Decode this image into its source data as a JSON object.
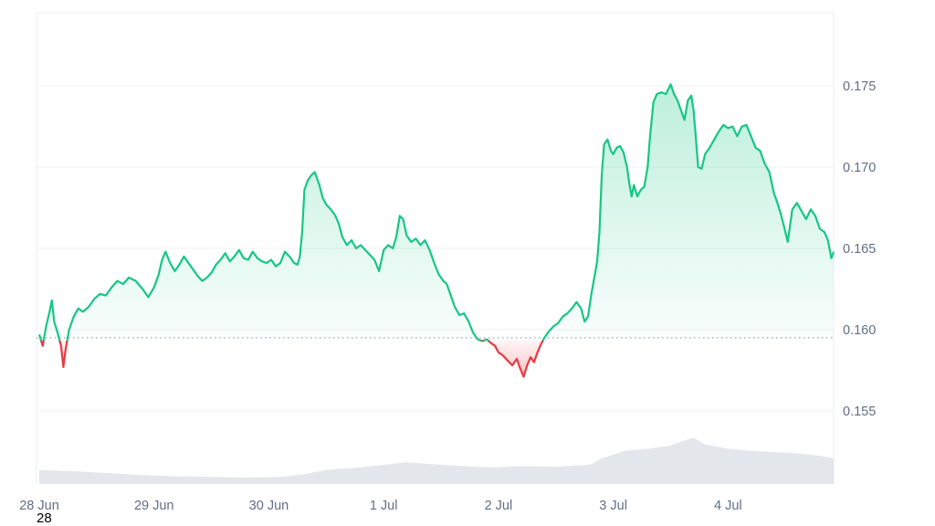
{
  "chart_data": {
    "type": "area",
    "baseline": 0.1595,
    "ylim": [
      0.1505,
      0.1795
    ],
    "y_ticks": [
      "0.175",
      "0.170",
      "0.165",
      "0.160",
      "0.155"
    ],
    "y_tick_values": [
      0.175,
      0.17,
      0.165,
      0.16,
      0.155
    ],
    "x_tick_labels": [
      "28 Jun",
      "29 Jun",
      "30 Jun",
      "1 Jul",
      "2 Jul",
      "3 Jul",
      "4 Jul"
    ],
    "x_tick_days": [
      0,
      1,
      2,
      3,
      4,
      5,
      6
    ],
    "x_range_days": [
      0,
      6.92
    ],
    "grid": "horizontal",
    "series": [
      {
        "values": [
          [
            0.0,
            0.1597
          ],
          [
            0.03,
            0.159
          ],
          [
            0.06,
            0.1602
          ],
          [
            0.09,
            0.1611
          ],
          [
            0.11,
            0.1618
          ],
          [
            0.13,
            0.1605
          ],
          [
            0.16,
            0.1598
          ],
          [
            0.19,
            0.159
          ],
          [
            0.21,
            0.1577
          ],
          [
            0.23,
            0.1588
          ],
          [
            0.26,
            0.16
          ],
          [
            0.3,
            0.1608
          ],
          [
            0.34,
            0.1613
          ],
          [
            0.38,
            0.1611
          ],
          [
            0.43,
            0.1614
          ],
          [
            0.48,
            0.1619
          ],
          [
            0.53,
            0.1622
          ],
          [
            0.58,
            0.1621
          ],
          [
            0.63,
            0.1626
          ],
          [
            0.68,
            0.163
          ],
          [
            0.73,
            0.1628
          ],
          [
            0.78,
            0.1632
          ],
          [
            0.84,
            0.163
          ],
          [
            0.9,
            0.1625
          ],
          [
            0.95,
            0.162
          ],
          [
            1.0,
            0.1626
          ],
          [
            1.04,
            0.1634
          ],
          [
            1.07,
            0.1643
          ],
          [
            1.1,
            0.1648
          ],
          [
            1.14,
            0.1641
          ],
          [
            1.18,
            0.1636
          ],
          [
            1.22,
            0.164
          ],
          [
            1.26,
            0.1645
          ],
          [
            1.3,
            0.1641
          ],
          [
            1.34,
            0.1637
          ],
          [
            1.38,
            0.1633
          ],
          [
            1.42,
            0.163
          ],
          [
            1.46,
            0.1632
          ],
          [
            1.5,
            0.1635
          ],
          [
            1.54,
            0.164
          ],
          [
            1.58,
            0.1643
          ],
          [
            1.62,
            0.1647
          ],
          [
            1.66,
            0.1642
          ],
          [
            1.7,
            0.1645
          ],
          [
            1.74,
            0.1649
          ],
          [
            1.78,
            0.1644
          ],
          [
            1.82,
            0.1643
          ],
          [
            1.86,
            0.1648
          ],
          [
            1.9,
            0.1644
          ],
          [
            1.94,
            0.1642
          ],
          [
            1.98,
            0.1641
          ],
          [
            2.02,
            0.1643
          ],
          [
            2.06,
            0.1639
          ],
          [
            2.1,
            0.1641
          ],
          [
            2.14,
            0.1648
          ],
          [
            2.18,
            0.1645
          ],
          [
            2.22,
            0.1641
          ],
          [
            2.25,
            0.164
          ],
          [
            2.27,
            0.1645
          ],
          [
            2.29,
            0.166
          ],
          [
            2.31,
            0.1686
          ],
          [
            2.34,
            0.1692
          ],
          [
            2.37,
            0.1695
          ],
          [
            2.4,
            0.1697
          ],
          [
            2.44,
            0.1689
          ],
          [
            2.47,
            0.1681
          ],
          [
            2.5,
            0.1677
          ],
          [
            2.54,
            0.1674
          ],
          [
            2.58,
            0.167
          ],
          [
            2.61,
            0.1665
          ],
          [
            2.64,
            0.1657
          ],
          [
            2.68,
            0.1652
          ],
          [
            2.72,
            0.1655
          ],
          [
            2.76,
            0.165
          ],
          [
            2.8,
            0.1652
          ],
          [
            2.84,
            0.1649
          ],
          [
            2.88,
            0.1646
          ],
          [
            2.92,
            0.1643
          ],
          [
            2.96,
            0.1636
          ],
          [
            3.0,
            0.1649
          ],
          [
            3.04,
            0.1652
          ],
          [
            3.08,
            0.165
          ],
          [
            3.11,
            0.1657
          ],
          [
            3.14,
            0.167
          ],
          [
            3.17,
            0.1668
          ],
          [
            3.2,
            0.1658
          ],
          [
            3.24,
            0.1654
          ],
          [
            3.28,
            0.1656
          ],
          [
            3.32,
            0.1652
          ],
          [
            3.36,
            0.1655
          ],
          [
            3.4,
            0.1649
          ],
          [
            3.44,
            0.1641
          ],
          [
            3.48,
            0.1634
          ],
          [
            3.52,
            0.163
          ],
          [
            3.55,
            0.1628
          ],
          [
            3.58,
            0.1622
          ],
          [
            3.62,
            0.1614
          ],
          [
            3.66,
            0.1609
          ],
          [
            3.7,
            0.161
          ],
          [
            3.74,
            0.1605
          ],
          [
            3.78,
            0.1598
          ],
          [
            3.81,
            0.1595
          ],
          [
            3.82,
            0.1594
          ],
          [
            3.86,
            0.1593
          ],
          [
            3.9,
            0.1594
          ],
          [
            3.93,
            0.1592
          ],
          [
            3.97,
            0.159
          ],
          [
            4.0,
            0.1586
          ],
          [
            4.04,
            0.1584
          ],
          [
            4.08,
            0.1581
          ],
          [
            4.12,
            0.1578
          ],
          [
            4.16,
            0.1582
          ],
          [
            4.19,
            0.1576
          ],
          [
            4.22,
            0.1571
          ],
          [
            4.25,
            0.1578
          ],
          [
            4.28,
            0.1583
          ],
          [
            4.31,
            0.158
          ],
          [
            4.34,
            0.1586
          ],
          [
            4.37,
            0.1591
          ],
          [
            4.4,
            0.1595
          ],
          [
            4.44,
            0.1599
          ],
          [
            4.48,
            0.1602
          ],
          [
            4.52,
            0.1604
          ],
          [
            4.56,
            0.1608
          ],
          [
            4.6,
            0.161
          ],
          [
            4.64,
            0.1613
          ],
          [
            4.68,
            0.1617
          ],
          [
            4.72,
            0.1613
          ],
          [
            4.75,
            0.1605
          ],
          [
            4.78,
            0.1608
          ],
          [
            4.81,
            0.1622
          ],
          [
            4.84,
            0.1634
          ],
          [
            4.86,
            0.1642
          ],
          [
            4.88,
            0.166
          ],
          [
            4.9,
            0.1695
          ],
          [
            4.92,
            0.1714
          ],
          [
            4.95,
            0.1717
          ],
          [
            4.98,
            0.171
          ],
          [
            5.0,
            0.1708
          ],
          [
            5.03,
            0.1712
          ],
          [
            5.06,
            0.1713
          ],
          [
            5.09,
            0.1709
          ],
          [
            5.12,
            0.17
          ],
          [
            5.14,
            0.169
          ],
          [
            5.16,
            0.1682
          ],
          [
            5.18,
            0.1689
          ],
          [
            5.21,
            0.1682
          ],
          [
            5.24,
            0.1686
          ],
          [
            5.27,
            0.1688
          ],
          [
            5.3,
            0.17
          ],
          [
            5.32,
            0.1718
          ],
          [
            5.35,
            0.174
          ],
          [
            5.38,
            0.1745
          ],
          [
            5.42,
            0.1746
          ],
          [
            5.46,
            0.1745
          ],
          [
            5.5,
            0.1751
          ],
          [
            5.53,
            0.1745
          ],
          [
            5.56,
            0.1741
          ],
          [
            5.59,
            0.1735
          ],
          [
            5.62,
            0.1729
          ],
          [
            5.65,
            0.1741
          ],
          [
            5.68,
            0.1744
          ],
          [
            5.7,
            0.1735
          ],
          [
            5.72,
            0.1718
          ],
          [
            5.74,
            0.17
          ],
          [
            5.77,
            0.1699
          ],
          [
            5.8,
            0.1708
          ],
          [
            5.84,
            0.1712
          ],
          [
            5.88,
            0.1717
          ],
          [
            5.92,
            0.1722
          ],
          [
            5.96,
            0.1726
          ],
          [
            6.0,
            0.1724
          ],
          [
            6.04,
            0.1725
          ],
          [
            6.08,
            0.1719
          ],
          [
            6.12,
            0.1725
          ],
          [
            6.16,
            0.1726
          ],
          [
            6.2,
            0.1719
          ],
          [
            6.24,
            0.1712
          ],
          [
            6.28,
            0.171
          ],
          [
            6.32,
            0.1702
          ],
          [
            6.36,
            0.1697
          ],
          [
            6.4,
            0.1684
          ],
          [
            6.43,
            0.1678
          ],
          [
            6.46,
            0.1671
          ],
          [
            6.49,
            0.1663
          ],
          [
            6.52,
            0.1654
          ],
          [
            6.56,
            0.1674
          ],
          [
            6.6,
            0.1678
          ],
          [
            6.64,
            0.1673
          ],
          [
            6.68,
            0.1668
          ],
          [
            6.72,
            0.1674
          ],
          [
            6.76,
            0.167
          ],
          [
            6.8,
            0.1662
          ],
          [
            6.84,
            0.166
          ],
          [
            6.87,
            0.1655
          ],
          [
            6.9,
            0.1644
          ],
          [
            6.92,
            0.1648
          ]
        ],
        "color_up": "#16c784",
        "color_down": "#ea3943"
      }
    ],
    "volume": [
      [
        0.0,
        0.22
      ],
      [
        0.3,
        0.2
      ],
      [
        0.6,
        0.17
      ],
      [
        0.9,
        0.14
      ],
      [
        1.2,
        0.12
      ],
      [
        1.5,
        0.11
      ],
      [
        1.8,
        0.1
      ],
      [
        2.1,
        0.11
      ],
      [
        2.3,
        0.15
      ],
      [
        2.5,
        0.22
      ],
      [
        2.8,
        0.26
      ],
      [
        3.0,
        0.3
      ],
      [
        3.2,
        0.34
      ],
      [
        3.5,
        0.3
      ],
      [
        3.8,
        0.27
      ],
      [
        4.0,
        0.26
      ],
      [
        4.2,
        0.28
      ],
      [
        4.5,
        0.27
      ],
      [
        4.8,
        0.3
      ],
      [
        4.9,
        0.4
      ],
      [
        5.1,
        0.52
      ],
      [
        5.3,
        0.55
      ],
      [
        5.5,
        0.6
      ],
      [
        5.6,
        0.67
      ],
      [
        5.7,
        0.72
      ],
      [
        5.8,
        0.62
      ],
      [
        6.0,
        0.55
      ],
      [
        6.2,
        0.52
      ],
      [
        6.4,
        0.5
      ],
      [
        6.6,
        0.48
      ],
      [
        6.8,
        0.44
      ],
      [
        6.92,
        0.4
      ]
    ]
  },
  "extra_label": "28"
}
